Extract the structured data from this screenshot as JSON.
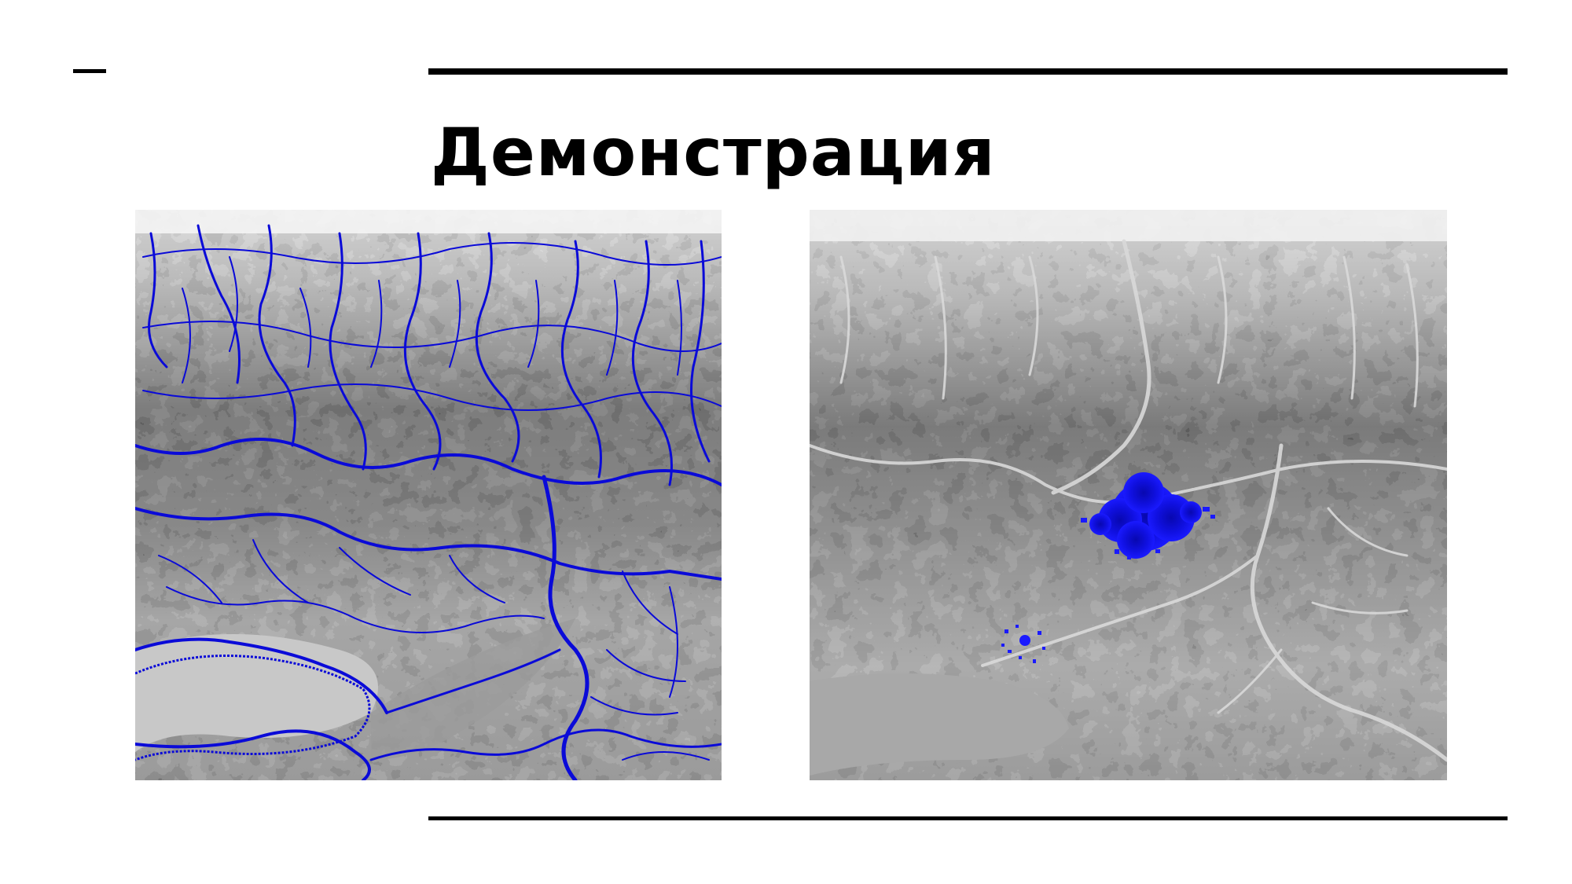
{
  "slide": {
    "title": "Демонстрация"
  },
  "images": {
    "left": {
      "icon": "terrain-heightmap-with-river-network",
      "overlay_color": "#0a0ad8"
    },
    "right": {
      "icon": "terrain-heightmap-with-flood-spot",
      "overlay_color": "#0a0ad8"
    }
  }
}
